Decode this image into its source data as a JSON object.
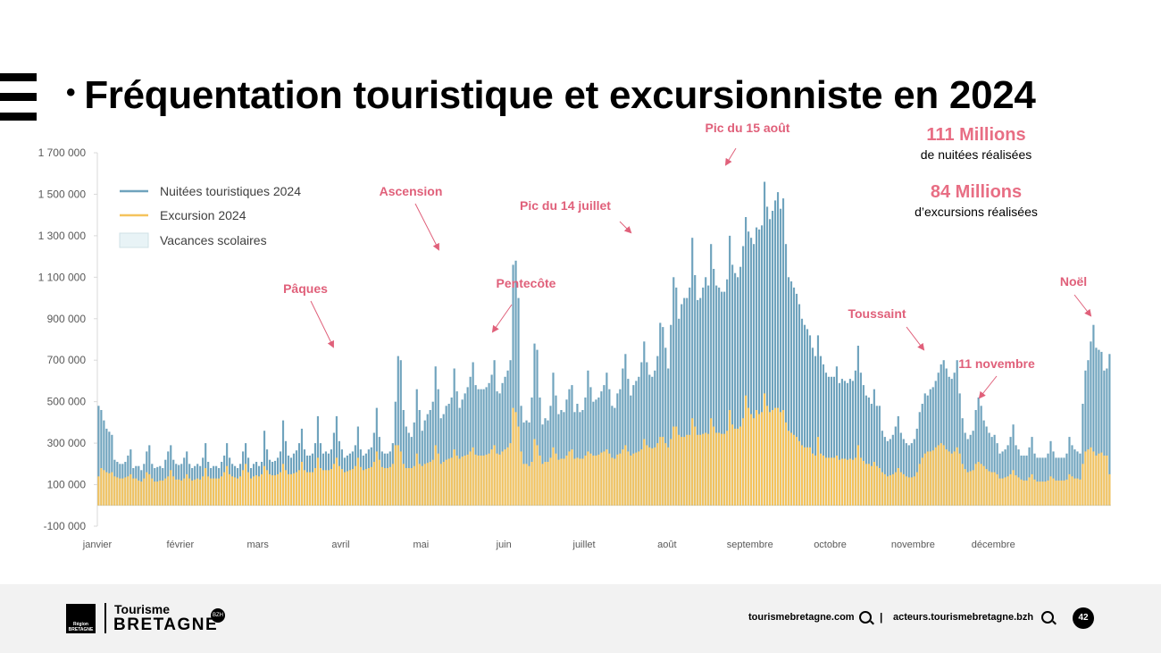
{
  "slide": {
    "title_bullet": "•",
    "title": "Fréquentation touristique et excursionniste en 2024",
    "page_number": "42"
  },
  "stats": {
    "nuitees_value": "111 Millions",
    "nuitees_label": "de nuitées réalisées",
    "excursions_value": "84 Millions",
    "excursions_label": "d’excursions réalisées"
  },
  "footer": {
    "brand_line1": "Tourisme",
    "brand_line2": "BRETAGNE",
    "badge": "BZH",
    "region_logo_text": "Région BRETAGNE",
    "link1": "tourismebretagne.com",
    "separator": "|",
    "link2": "acteurs.tourismebretagne.bzh"
  },
  "colors": {
    "nuitees": "#6fa3bd",
    "excursion": "#f5c35c",
    "vacances": "#e8f3f6",
    "annotation": "#e0607a",
    "stat_accent": "#e86e84"
  },
  "chart_data": {
    "type": "bar",
    "title": "",
    "xlabel": "",
    "ylabel": "",
    "ylim": [
      -100000,
      1700000
    ],
    "yticks": [
      -100000,
      100000,
      300000,
      500000,
      700000,
      900000,
      1100000,
      1300000,
      1500000,
      1700000
    ],
    "ytick_labels": [
      "-100 000",
      "100 000",
      "300 000",
      "500 000",
      "700 000",
      "900 000",
      "1 100 000",
      "1 300 000",
      "1 500 000",
      "1 700 000"
    ],
    "x_unit": "day of year 2024",
    "month_labels": [
      "janvier",
      "février",
      "mars",
      "avril",
      "mai",
      "juin",
      "juillet",
      "août",
      "septembre",
      "octobre",
      "novembre",
      "décembre"
    ],
    "month_start_day": [
      1,
      32,
      61,
      92,
      122,
      153,
      183,
      214,
      245,
      275,
      306,
      336
    ],
    "legend": [
      "Nuitées touristiques 2024",
      "Excursion 2024",
      "Vacances scolaires"
    ],
    "legend_position": "top-left",
    "grid": false,
    "series": [
      {
        "name": "Nuitées touristiques 2024",
        "values_thousands": [
          480,
          460,
          410,
          370,
          355,
          340,
          220,
          210,
          200,
          200,
          210,
          240,
          270,
          180,
          190,
          190,
          170,
          200,
          260,
          290,
          200,
          180,
          185,
          190,
          180,
          220,
          260,
          290,
          220,
          200,
          195,
          200,
          230,
          260,
          200,
          180,
          190,
          200,
          190,
          230,
          300,
          210,
          180,
          190,
          190,
          180,
          210,
          240,
          300,
          230,
          200,
          190,
          180,
          200,
          260,
          300,
          230,
          180,
          200,
          210,
          190,
          210,
          360,
          270,
          220,
          210,
          215,
          230,
          260,
          410,
          310,
          240,
          230,
          250,
          265,
          300,
          370,
          270,
          240,
          240,
          250,
          300,
          430,
          300,
          250,
          260,
          250,
          270,
          350,
          430,
          310,
          270,
          230,
          240,
          250,
          260,
          290,
          380,
          270,
          240,
          250,
          270,
          280,
          350,
          470,
          330,
          260,
          250,
          250,
          260,
          300,
          500,
          720,
          700,
          460,
          380,
          350,
          330,
          400,
          560,
          460,
          360,
          410,
          440,
          460,
          500,
          670,
          560,
          420,
          440,
          480,
          490,
          520,
          660,
          550,
          470,
          510,
          540,
          570,
          620,
          690,
          580,
          560,
          560,
          560,
          570,
          590,
          630,
          700,
          550,
          540,
          590,
          620,
          650,
          700,
          1160,
          1180,
          1000,
          480,
          400,
          410,
          400,
          520,
          780,
          750,
          520,
          390,
          420,
          410,
          480,
          640,
          530,
          440,
          460,
          450,
          510,
          560,
          580,
          450,
          490,
          450,
          460,
          520,
          650,
          570,
          500,
          510,
          520,
          550,
          580,
          640,
          560,
          480,
          470,
          540,
          560,
          660,
          730,
          610,
          530,
          580,
          600,
          620,
          690,
          790,
          690,
          630,
          620,
          650,
          720,
          880,
          860,
          760,
          660,
          870,
          1100,
          1050,
          900,
          970,
          1000,
          1000,
          1050,
          1290,
          1110,
          990,
          1000,
          1050,
          1100,
          1060,
          1260,
          1140,
          1060,
          1050,
          1030,
          1030,
          1090,
          1300,
          1160,
          1120,
          1100,
          1150,
          1250,
          1390,
          1320,
          1290,
          1260,
          1340,
          1330,
          1350,
          1560,
          1440,
          1380,
          1420,
          1470,
          1510,
          1430,
          1480,
          1260,
          1100,
          1080,
          1050,
          1020,
          970,
          900,
          870,
          850,
          820,
          760,
          720,
          820,
          720,
          680,
          640,
          620,
          620,
          620,
          670,
          590,
          610,
          600,
          590,
          610,
          600,
          650,
          770,
          640,
          580,
          530,
          520,
          490,
          560,
          480,
          480,
          360,
          330,
          310,
          320,
          340,
          380,
          430,
          350,
          320,
          300,
          290,
          300,
          320,
          370,
          450,
          490,
          540,
          530,
          560,
          570,
          600,
          640,
          680,
          700,
          660,
          620,
          610,
          640,
          700,
          540,
          420,
          350,
          320,
          340,
          360,
          460,
          520,
          480,
          410,
          380,
          350,
          330,
          340,
          300,
          250,
          260,
          270,
          290,
          330,
          390,
          290,
          270,
          240,
          240,
          240,
          280,
          330,
          250,
          230,
          230,
          230,
          230,
          250,
          310,
          260,
          230,
          230,
          230,
          230,
          250,
          330,
          290,
          270,
          260,
          250,
          490,
          650,
          700,
          790,
          870,
          760,
          750,
          740,
          650,
          660,
          730
        ]
      },
      {
        "name": "Excursion 2024",
        "values_thousands": [
          140,
          180,
          170,
          160,
          155,
          160,
          140,
          135,
          130,
          130,
          135,
          140,
          150,
          130,
          130,
          120,
          115,
          130,
          160,
          150,
          130,
          115,
          115,
          120,
          120,
          130,
          140,
          170,
          140,
          125,
          125,
          120,
          130,
          150,
          130,
          120,
          125,
          130,
          125,
          140,
          180,
          140,
          130,
          130,
          130,
          130,
          140,
          160,
          190,
          150,
          140,
          135,
          130,
          140,
          170,
          200,
          160,
          130,
          140,
          145,
          140,
          150,
          190,
          170,
          150,
          145,
          145,
          150,
          160,
          200,
          170,
          150,
          150,
          155,
          160,
          170,
          210,
          170,
          160,
          160,
          160,
          180,
          230,
          180,
          170,
          170,
          170,
          175,
          200,
          230,
          190,
          175,
          160,
          165,
          170,
          175,
          190,
          230,
          185,
          170,
          175,
          180,
          185,
          210,
          260,
          220,
          185,
          180,
          180,
          185,
          200,
          290,
          290,
          260,
          200,
          180,
          180,
          180,
          190,
          250,
          200,
          190,
          200,
          205,
          210,
          220,
          290,
          250,
          200,
          210,
          220,
          225,
          230,
          270,
          240,
          225,
          235,
          240,
          245,
          260,
          280,
          245,
          240,
          240,
          240,
          245,
          250,
          270,
          290,
          250,
          245,
          260,
          270,
          280,
          300,
          470,
          450,
          380,
          260,
          200,
          200,
          190,
          210,
          320,
          290,
          240,
          200,
          210,
          210,
          230,
          280,
          250,
          220,
          225,
          225,
          240,
          260,
          270,
          225,
          230,
          225,
          225,
          240,
          260,
          250,
          240,
          240,
          245,
          255,
          260,
          270,
          250,
          230,
          225,
          245,
          250,
          270,
          290,
          260,
          240,
          250,
          255,
          260,
          270,
          320,
          290,
          280,
          275,
          280,
          300,
          330,
          330,
          300,
          280,
          320,
          380,
          380,
          340,
          330,
          330,
          340,
          340,
          420,
          380,
          340,
          340,
          345,
          350,
          345,
          420,
          380,
          350,
          350,
          345,
          345,
          360,
          460,
          390,
          370,
          370,
          380,
          420,
          530,
          470,
          440,
          420,
          460,
          440,
          450,
          540,
          480,
          450,
          460,
          470,
          470,
          450,
          460,
          400,
          360,
          350,
          340,
          330,
          310,
          290,
          280,
          280,
          280,
          250,
          240,
          330,
          250,
          240,
          230,
          230,
          230,
          230,
          240,
          220,
          225,
          225,
          220,
          225,
          220,
          230,
          290,
          230,
          215,
          200,
          200,
          190,
          210,
          190,
          180,
          160,
          150,
          140,
          145,
          150,
          160,
          180,
          160,
          150,
          140,
          135,
          135,
          140,
          160,
          200,
          230,
          250,
          260,
          260,
          265,
          280,
          290,
          300,
          290,
          270,
          260,
          250,
          260,
          280,
          250,
          200,
          175,
          160,
          165,
          170,
          200,
          210,
          200,
          190,
          175,
          165,
          160,
          160,
          150,
          130,
          130,
          135,
          140,
          150,
          170,
          145,
          135,
          125,
          120,
          120,
          135,
          150,
          125,
          115,
          115,
          115,
          115,
          120,
          140,
          130,
          120,
          120,
          120,
          120,
          125,
          150,
          140,
          130,
          130,
          125,
          200,
          260,
          270,
          280,
          260,
          240,
          250,
          255,
          240,
          240,
          150
        ]
      }
    ],
    "annotations": [
      "Pâques",
      "Ascension",
      "Pentecôte",
      "Pic du 14 juillet",
      "Pic du 15 août",
      "Toussaint",
      "11 novembre",
      "Noël"
    ]
  }
}
